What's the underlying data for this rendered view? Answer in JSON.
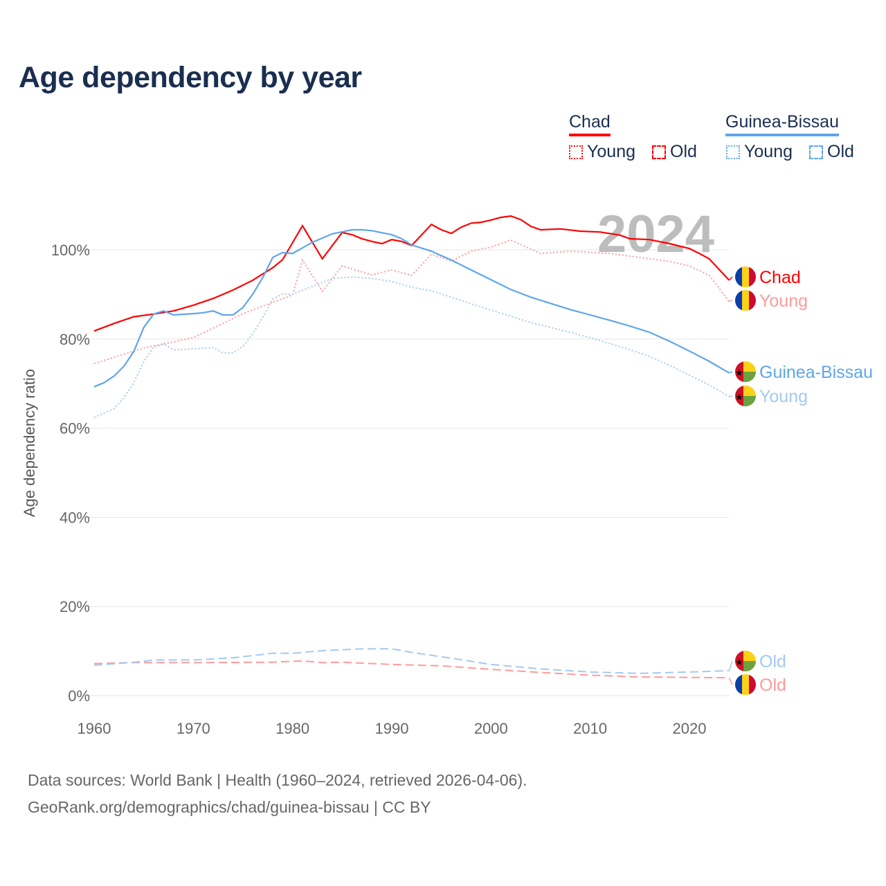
{
  "title": "Age dependency by year",
  "legend": {
    "countries": [
      {
        "name": "Chad",
        "color": "#ff0000",
        "young_label": "Young",
        "old_label": "Old"
      },
      {
        "name": "Guinea-Bissau",
        "color": "#5ea6ea",
        "young_label": "Young",
        "old_label": "Old"
      }
    ]
  },
  "year_label": "2024",
  "footer": {
    "line1": "Data sources: World Bank | Health (1960–2024, retrieved 2026-04-06).",
    "line2": "GeoRank.org/demographics/chad/guinea-bissau | CC BY"
  },
  "chart_data": {
    "type": "line",
    "title": "Age dependency by year",
    "xlabel": "",
    "ylabel": "Age dependency ratio",
    "xlim": [
      1960,
      2024
    ],
    "ylim": [
      0,
      110
    ],
    "x_ticks": [
      "1960",
      "1970",
      "1980",
      "1990",
      "2000",
      "2010",
      "2020"
    ],
    "y_ticks": [
      "0%",
      "20%",
      "40%",
      "60%",
      "80%",
      "100%"
    ],
    "grid": true,
    "legend_position": "top-right",
    "series": [
      {
        "name": "Chad",
        "label": "Chad",
        "style": "solid",
        "color": "#ff0000",
        "points": [
          [
            1960,
            81.8
          ],
          [
            1962,
            83.5
          ],
          [
            1964,
            85
          ],
          [
            1966,
            85.6
          ],
          [
            1968,
            86.3
          ],
          [
            1970,
            87.6
          ],
          [
            1972,
            89.1
          ],
          [
            1974,
            91
          ],
          [
            1976,
            93.2
          ],
          [
            1978,
            96
          ],
          [
            1979,
            97.8
          ],
          [
            1981,
            105.4
          ],
          [
            1983,
            98
          ],
          [
            1985,
            103.9
          ],
          [
            1986,
            103.4
          ],
          [
            1987,
            102.5
          ],
          [
            1988,
            101.9
          ],
          [
            1989,
            101.4
          ],
          [
            1990,
            102.3
          ],
          [
            1991,
            101.9
          ],
          [
            1992,
            101
          ],
          [
            1994,
            105.7
          ],
          [
            1995,
            104.5
          ],
          [
            1996,
            103.7
          ],
          [
            1997,
            105.1
          ],
          [
            1998,
            106
          ],
          [
            1999,
            106.2
          ],
          [
            2000,
            106.7
          ],
          [
            2001,
            107.3
          ],
          [
            2002,
            107.6
          ],
          [
            2003,
            106.8
          ],
          [
            2004,
            105.3
          ],
          [
            2005,
            104.5
          ],
          [
            2007,
            104.7
          ],
          [
            2009,
            104.2
          ],
          [
            2011,
            104
          ],
          [
            2013,
            103.3
          ],
          [
            2014,
            102.5
          ],
          [
            2016,
            102.3
          ],
          [
            2018,
            101.4
          ],
          [
            2020,
            100.3
          ],
          [
            2021,
            99.2
          ],
          [
            2022,
            98
          ],
          [
            2024,
            93.2
          ]
        ]
      },
      {
        "name": "Chad Young",
        "label": "Young",
        "style": "dotted",
        "color": "#ff9a9a",
        "points": [
          [
            1960,
            74.5
          ],
          [
            1965,
            78
          ],
          [
            1970,
            80.3
          ],
          [
            1975,
            85.7
          ],
          [
            1980,
            89.9
          ],
          [
            1981,
            97.7
          ],
          [
            1983,
            90.7
          ],
          [
            1985,
            96.4
          ],
          [
            1988,
            94.4
          ],
          [
            1990,
            95.5
          ],
          [
            1992,
            94.3
          ],
          [
            1994,
            99
          ],
          [
            1996,
            97.5
          ],
          [
            1998,
            99.7
          ],
          [
            2000,
            100.6
          ],
          [
            2002,
            102.2
          ],
          [
            2004,
            100.2
          ],
          [
            2005,
            99.2
          ],
          [
            2008,
            99.7
          ],
          [
            2012,
            99.2
          ],
          [
            2015,
            98.3
          ],
          [
            2018,
            97.4
          ],
          [
            2020,
            96.4
          ],
          [
            2022,
            94.3
          ],
          [
            2024,
            88.4
          ]
        ]
      },
      {
        "name": "Chad Old",
        "label": "Old",
        "style": "dashed",
        "color": "#ff9a9a",
        "points": [
          [
            1960,
            7.2
          ],
          [
            1964,
            7.4
          ],
          [
            1970,
            7.4
          ],
          [
            1978,
            7.5
          ],
          [
            1981,
            7.8
          ],
          [
            1983,
            7.4
          ],
          [
            1985,
            7.5
          ],
          [
            1990,
            7.0
          ],
          [
            1995,
            6.7
          ],
          [
            2000,
            5.9
          ],
          [
            2005,
            5.2
          ],
          [
            2010,
            4.6
          ],
          [
            2015,
            4.2
          ],
          [
            2024,
            4.0
          ]
        ]
      },
      {
        "name": "Guinea-Bissau",
        "label": "Guinea-Bissau",
        "style": "solid",
        "color": "#5ea6ea",
        "points": [
          [
            1960,
            69.3
          ],
          [
            1961,
            70.2
          ],
          [
            1962,
            71.7
          ],
          [
            1963,
            73.9
          ],
          [
            1964,
            77.2
          ],
          [
            1965,
            82.6
          ],
          [
            1966,
            85.6
          ],
          [
            1967,
            86.3
          ],
          [
            1968,
            85.4
          ],
          [
            1970,
            85.7
          ],
          [
            1971,
            85.9
          ],
          [
            1972,
            86.3
          ],
          [
            1973,
            85.4
          ],
          [
            1974,
            85.4
          ],
          [
            1975,
            87.1
          ],
          [
            1976,
            90.1
          ],
          [
            1977,
            93.8
          ],
          [
            1978,
            98.3
          ],
          [
            1979,
            99.4
          ],
          [
            1980,
            99.2
          ],
          [
            1982,
            101.7
          ],
          [
            1984,
            103.6
          ],
          [
            1986,
            104.5
          ],
          [
            1987,
            104.5
          ],
          [
            1988,
            104.3
          ],
          [
            1990,
            103.4
          ],
          [
            1991,
            102.5
          ],
          [
            1992,
            101.1
          ],
          [
            1994,
            99.7
          ],
          [
            1996,
            97.7
          ],
          [
            1998,
            95.5
          ],
          [
            2000,
            93.3
          ],
          [
            2002,
            91.1
          ],
          [
            2004,
            89.4
          ],
          [
            2006,
            88
          ],
          [
            2008,
            86.6
          ],
          [
            2010,
            85.4
          ],
          [
            2012,
            84.2
          ],
          [
            2014,
            82.9
          ],
          [
            2016,
            81.5
          ],
          [
            2018,
            79.5
          ],
          [
            2020,
            77.3
          ],
          [
            2022,
            75
          ],
          [
            2024,
            72.4
          ]
        ]
      },
      {
        "name": "Guinea-Bissau Young",
        "label": "Young",
        "style": "dotted",
        "color": "#a3c9f1",
        "points": [
          [
            1960,
            62.4
          ],
          [
            1962,
            64.4
          ],
          [
            1963,
            66.8
          ],
          [
            1964,
            70.2
          ],
          [
            1965,
            75
          ],
          [
            1966,
            78.1
          ],
          [
            1967,
            78.9
          ],
          [
            1968,
            77.6
          ],
          [
            1970,
            77.8
          ],
          [
            1972,
            78.1
          ],
          [
            1973,
            76.9
          ],
          [
            1974,
            76.9
          ],
          [
            1975,
            78.3
          ],
          [
            1976,
            81.2
          ],
          [
            1977,
            84.9
          ],
          [
            1978,
            89
          ],
          [
            1979,
            90.1
          ],
          [
            1980,
            90.1
          ],
          [
            1982,
            91.8
          ],
          [
            1984,
            93.6
          ],
          [
            1986,
            93.9
          ],
          [
            1988,
            93.6
          ],
          [
            1990,
            92.9
          ],
          [
            1992,
            91.6
          ],
          [
            1994,
            90.8
          ],
          [
            1996,
            89.4
          ],
          [
            1998,
            87.9
          ],
          [
            2000,
            86.5
          ],
          [
            2002,
            85.1
          ],
          [
            2004,
            83.7
          ],
          [
            2006,
            82.6
          ],
          [
            2008,
            81.5
          ],
          [
            2010,
            80.3
          ],
          [
            2012,
            79
          ],
          [
            2014,
            77.6
          ],
          [
            2016,
            76.1
          ],
          [
            2018,
            74.1
          ],
          [
            2020,
            71.9
          ],
          [
            2022,
            69.7
          ],
          [
            2024,
            67.1
          ]
        ]
      },
      {
        "name": "Guinea-Bissau Old",
        "label": "Old",
        "style": "dashed",
        "color": "#a3c9f1",
        "points": [
          [
            1960,
            6.8
          ],
          [
            1964,
            7.5
          ],
          [
            1966,
            8.0
          ],
          [
            1970,
            8.0
          ],
          [
            1974,
            8.5
          ],
          [
            1978,
            9.5
          ],
          [
            1980,
            9.5
          ],
          [
            1983,
            10.1
          ],
          [
            1987,
            10.5
          ],
          [
            1990,
            10.5
          ],
          [
            1992,
            9.7
          ],
          [
            1996,
            8.4
          ],
          [
            2000,
            7.0
          ],
          [
            2005,
            6.0
          ],
          [
            2010,
            5.3
          ],
          [
            2015,
            5.0
          ],
          [
            2020,
            5.3
          ],
          [
            2024,
            5.6
          ]
        ]
      }
    ]
  }
}
